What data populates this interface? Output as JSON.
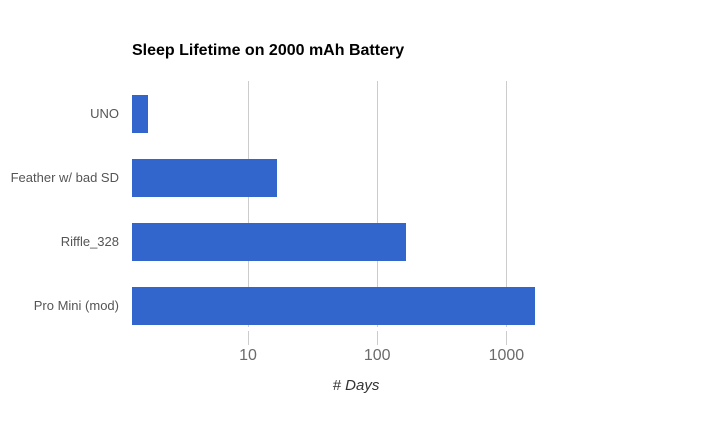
{
  "chart_data": {
    "type": "bar",
    "orientation": "horizontal",
    "title": "Sleep Lifetime on 2000 mAh Battery",
    "categories": [
      "UNO",
      "Feather w/ bad SD",
      "Riffle_328",
      "Pro Mini (mod)"
    ],
    "values": [
      1.67,
      16.7,
      167,
      1667
    ],
    "xlabel": "# Days",
    "x_scale": "log10",
    "x_ticks": [
      10,
      100,
      1000
    ],
    "xlim": [
      1.27,
      3700
    ],
    "grid": true,
    "legend": "none",
    "bar_color": "#3366cc",
    "gridline_color": "#cccccc",
    "title_color": "#000000",
    "category_label_color": "#555555",
    "tick_label_color": "#6b6b6b",
    "background_color": "#ffffff"
  }
}
